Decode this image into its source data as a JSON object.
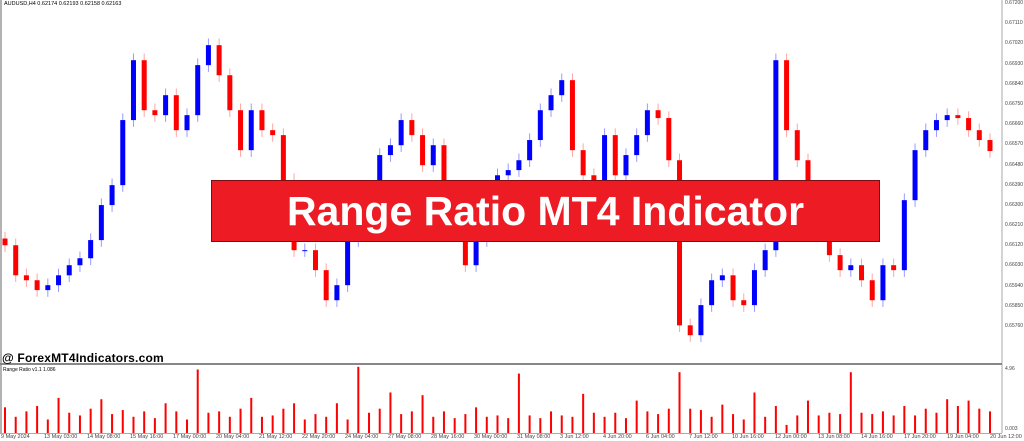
{
  "header": {
    "symbol_info": "AUDUSD,H4  0.62174 0.62193 0.62158 0.62163"
  },
  "watermark": "@ ForexMT4Indicators.com",
  "banner": {
    "title": "Range Ratio MT4 Indicator",
    "color": "#ed1c24"
  },
  "indicator": {
    "label": "Range Ratio v1.1 1.086",
    "axis_top": "4.96",
    "axis_bottom": "0.003"
  },
  "colors": {
    "bull": "#0000ff",
    "bear": "#ff0000",
    "indicator": "#ff0000"
  },
  "chart_data": [
    {
      "type": "candlestick",
      "symbol": "AUDUSD",
      "timeframe": "H4",
      "ylim": [
        0.6572,
        0.672
      ],
      "y_ticks": [
        "0.67200",
        "0.67110",
        "0.67020",
        "0.66930",
        "0.66840",
        "0.66750",
        "0.66660",
        "0.66570",
        "0.66480",
        "0.66390",
        "0.66300",
        "0.66210",
        "0.66120",
        "0.66030",
        "0.65940",
        "0.65850",
        "0.65760"
      ],
      "x_ticks": [
        "9 May 2024",
        "13 May 03:00",
        "14 May 08:00",
        "15 May 16:00",
        "17 May 00:00",
        "20 May 04:00",
        "21 May 12:00",
        "22 May 20:00",
        "24 May 04:00",
        "27 May 08:00",
        "28 May 16:00",
        "30 May 00:00",
        "31 May 08:00",
        "3 Jun 12:00",
        "4 Jun 20:00",
        "6 Jun 04:00",
        "7 Jun 12:00",
        "10 Jun 16:00",
        "12 Jun 00:00",
        "13 Jun 08:00",
        "14 Jun 16:00",
        "17 Jun 20:00",
        "19 Jun 04:00",
        "20 Jun 12:00"
      ],
      "first_open": 0.6615,
      "close": [
        0.6612,
        0.65986,
        0.65964,
        0.6592,
        0.65942,
        0.65986,
        0.66031,
        0.66062,
        0.66143,
        0.66299,
        0.66388,
        0.66678,
        0.66945,
        0.66722,
        0.667,
        0.66789,
        0.66633,
        0.667,
        0.66923,
        0.67012,
        0.66878,
        0.66722,
        0.66544,
        0.66722,
        0.66633,
        0.66611,
        0.6641,
        0.66098,
        0.66098,
        0.66009,
        0.65875,
        0.65942,
        0.66143,
        0.66209,
        0.66343,
        0.66522,
        0.66566,
        0.66678,
        0.66611,
        0.66477,
        0.66566,
        0.66321,
        0.66187,
        0.66031,
        0.66143,
        0.66343,
        0.66432,
        0.66455,
        0.66499,
        0.66589,
        0.66722,
        0.66789,
        0.66856,
        0.66544,
        0.66432,
        0.6641,
        0.66611,
        0.66432,
        0.66522,
        0.66611,
        0.66722,
        0.66687,
        0.66499,
        0.65763,
        0.65719,
        0.65853,
        0.65964,
        0.65986,
        0.65875,
        0.65853,
        0.66009,
        0.66098,
        0.66945,
        0.66633,
        0.66499,
        0.66343,
        0.66232,
        0.66076,
        0.66009,
        0.66031,
        0.65964,
        0.65875,
        0.66031,
        0.66009,
        0.66321,
        0.66544,
        0.66633,
        0.66678,
        0.667,
        0.66687,
        0.66633,
        0.66589,
        0.6654
      ]
    },
    {
      "type": "bar",
      "name": "Range Ratio v1.1",
      "ylim": [
        0,
        4.96
      ],
      "values": [
        1.9,
        1.2,
        1.6,
        2.0,
        1.0,
        2.6,
        1.5,
        1.3,
        1.8,
        2.5,
        1.4,
        1.7,
        1.2,
        1.6,
        1.1,
        2.2,
        1.6,
        1.0,
        4.7,
        1.5,
        1.6,
        1.2,
        1.8,
        2.6,
        1.2,
        1.3,
        1.8,
        2.2,
        1.0,
        1.4,
        1.2,
        2.2,
        1.0,
        4.9,
        1.5,
        1.8,
        3.0,
        1.4,
        1.6,
        2.8,
        1.2,
        1.6,
        1.1,
        1.4,
        1.9,
        1.2,
        1.3,
        1.1,
        4.4,
        1.3,
        1.1,
        1.6,
        1.3,
        1.2,
        2.9,
        1.5,
        1.2,
        1.5,
        1.1,
        2.4,
        1.6,
        1.4,
        1.8,
        4.5,
        1.8,
        1.7,
        1.2,
        2.1,
        1.4,
        1.0,
        3.0,
        1.2,
        2.0,
        0.6,
        1.3,
        2.4,
        1.3,
        1.5,
        1.4,
        4.5,
        1.5,
        1.4,
        1.6,
        1.3,
        2.0,
        1.3,
        1.8,
        1.5,
        2.5,
        2.0,
        2.4,
        1.8,
        1.6
      ]
    }
  ]
}
